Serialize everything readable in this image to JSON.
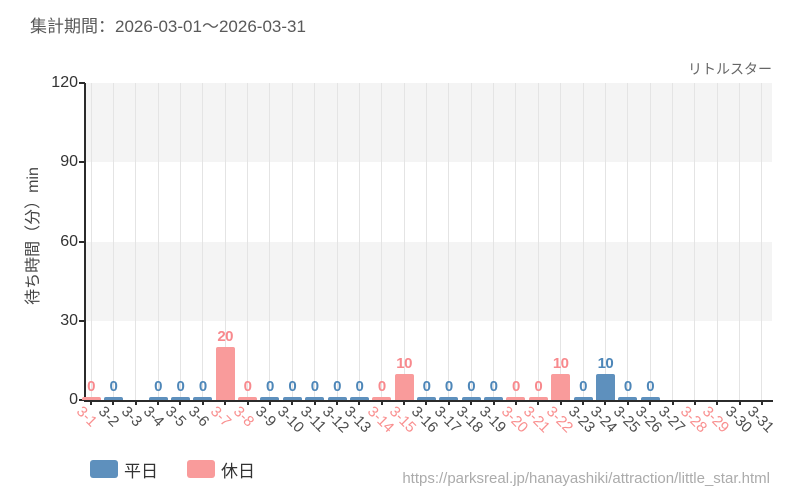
{
  "header": {
    "period_label": "集計期間：2026-03-01～2026-03-31"
  },
  "footer": {
    "url": "https://parksreal.jp/hanayashiki/attraction/little_star.html"
  },
  "colors": {
    "weekday_bar": "#5e90bd",
    "holiday_bar": "#f99b9b",
    "weekday_text": "#4d86b8",
    "holiday_text": "#f8898d",
    "grid": "#e4e4e4",
    "band": "#f4f4f4",
    "spine": "#2b2b2b"
  },
  "chart_data": {
    "type": "bar",
    "title": "リトルスター",
    "ylabel": "待ち時間（分）min",
    "ylim": [
      0,
      120
    ],
    "yticks": [
      0,
      30,
      60,
      90,
      120
    ],
    "grid": "vertical-on, horizontal-bands",
    "legend_position": "bottom-left",
    "legend": [
      {
        "label": "平日",
        "color": "#5e90bd"
      },
      {
        "label": "休日",
        "color": "#f99b9b"
      }
    ],
    "categories": [
      "3-1",
      "3-2",
      "3-3",
      "3-4",
      "3-5",
      "3-6",
      "3-7",
      "3-8",
      "3-9",
      "3-10",
      "3-11",
      "3-12",
      "3-13",
      "3-14",
      "3-15",
      "3-16",
      "3-17",
      "3-18",
      "3-19",
      "3-20",
      "3-21",
      "3-22",
      "3-23",
      "3-24",
      "3-25",
      "3-26",
      "3-27",
      "3-28",
      "3-29",
      "3-30",
      "3-31"
    ],
    "points": [
      {
        "date": "3-1",
        "value": 0,
        "day_type": "holiday"
      },
      {
        "date": "3-2",
        "value": 0,
        "day_type": "weekday"
      },
      {
        "date": "3-3",
        "value": null,
        "day_type": "weekday"
      },
      {
        "date": "3-4",
        "value": 0,
        "day_type": "weekday"
      },
      {
        "date": "3-5",
        "value": 0,
        "day_type": "weekday"
      },
      {
        "date": "3-6",
        "value": 0,
        "day_type": "weekday"
      },
      {
        "date": "3-7",
        "value": 20,
        "day_type": "holiday"
      },
      {
        "date": "3-8",
        "value": 0,
        "day_type": "holiday"
      },
      {
        "date": "3-9",
        "value": 0,
        "day_type": "weekday"
      },
      {
        "date": "3-10",
        "value": 0,
        "day_type": "weekday"
      },
      {
        "date": "3-11",
        "value": 0,
        "day_type": "weekday"
      },
      {
        "date": "3-12",
        "value": 0,
        "day_type": "weekday"
      },
      {
        "date": "3-13",
        "value": 0,
        "day_type": "weekday"
      },
      {
        "date": "3-14",
        "value": 0,
        "day_type": "holiday"
      },
      {
        "date": "3-15",
        "value": 10,
        "day_type": "holiday"
      },
      {
        "date": "3-16",
        "value": 0,
        "day_type": "weekday"
      },
      {
        "date": "3-17",
        "value": 0,
        "day_type": "weekday"
      },
      {
        "date": "3-18",
        "value": 0,
        "day_type": "weekday"
      },
      {
        "date": "3-19",
        "value": 0,
        "day_type": "weekday"
      },
      {
        "date": "3-20",
        "value": 0,
        "day_type": "holiday"
      },
      {
        "date": "3-21",
        "value": 0,
        "day_type": "holiday"
      },
      {
        "date": "3-22",
        "value": 10,
        "day_type": "holiday"
      },
      {
        "date": "3-23",
        "value": 0,
        "day_type": "weekday"
      },
      {
        "date": "3-24",
        "value": 10,
        "day_type": "weekday"
      },
      {
        "date": "3-25",
        "value": 0,
        "day_type": "weekday"
      },
      {
        "date": "3-26",
        "value": 0,
        "day_type": "weekday"
      },
      {
        "date": "3-27",
        "value": null,
        "day_type": "weekday"
      },
      {
        "date": "3-28",
        "value": null,
        "day_type": "holiday"
      },
      {
        "date": "3-29",
        "value": null,
        "day_type": "holiday"
      },
      {
        "date": "3-30",
        "value": null,
        "day_type": "weekday"
      },
      {
        "date": "3-31",
        "value": null,
        "day_type": "weekday"
      }
    ]
  }
}
